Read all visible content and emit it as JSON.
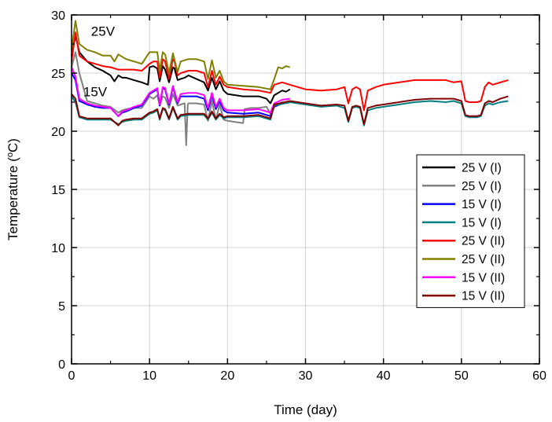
{
  "chart_data": {
    "type": "line",
    "xlabel": "Time (day)",
    "ylabel_main": "Temperature (",
    "ylabel_sup": "o",
    "ylabel_tail": "C)",
    "xlim": [
      0,
      60
    ],
    "ylim": [
      0,
      30
    ],
    "xticks": [
      0,
      10,
      20,
      30,
      40,
      50,
      60
    ],
    "yticks": [
      0,
      5,
      10,
      15,
      20,
      25,
      30
    ],
    "grid": true,
    "legend_position": "right",
    "annotations": [
      {
        "text": "25V",
        "x": 2.5,
        "y": 28.2
      },
      {
        "text": "15V",
        "x": 1.5,
        "y": 23.0
      }
    ],
    "series": [
      {
        "name": "25 V (I)",
        "color": "#000000",
        "x": [
          0,
          0.5,
          1,
          2,
          3,
          4,
          5,
          5.5,
          6,
          6.5,
          7,
          8,
          9,
          9.8,
          10,
          10.5,
          11,
          11.3,
          11.7,
          12,
          12.5,
          13,
          13.2,
          13.6,
          14,
          14.5,
          15,
          16,
          17,
          17.5,
          18,
          18.5,
          19,
          19.5,
          20,
          21,
          22,
          23,
          24,
          25,
          25.5,
          26,
          26.5,
          27,
          27.5,
          28
        ],
        "y": [
          26.5,
          28.2,
          26.8,
          26.0,
          25.5,
          25.2,
          24.8,
          24.3,
          24.8,
          24.6,
          24.6,
          24.4,
          24.2,
          24.0,
          25.5,
          25.6,
          25.4,
          24.3,
          25.6,
          25.3,
          24.2,
          25.5,
          25.4,
          24.4,
          24.5,
          24.6,
          24.8,
          24.5,
          24.2,
          23.5,
          24.6,
          23.6,
          24.3,
          23.5,
          23.2,
          23.1,
          23.0,
          23.0,
          23.0,
          22.8,
          22.4,
          23.1,
          23.3,
          23.5,
          23.4,
          23.6
        ]
      },
      {
        "name": "25 V (I)",
        "color": "#808080",
        "x": [
          0,
          0.5,
          1,
          2,
          3,
          4,
          5,
          6,
          6.5,
          7,
          8,
          9,
          10,
          10.5,
          11,
          11.3,
          11.7,
          12,
          12.5,
          13,
          13.6,
          14,
          14.5,
          14.7,
          14.9,
          15,
          15.5,
          16,
          17,
          17.5,
          18,
          18.5,
          19,
          19.5,
          20,
          21,
          22,
          22.2,
          23,
          24,
          25,
          25.5,
          26,
          26.5,
          27,
          27.5,
          28
        ],
        "y": [
          25.5,
          26.8,
          25.0,
          22.6,
          22.4,
          22.2,
          22.1,
          21.6,
          21.8,
          21.9,
          22.0,
          22.0,
          23.0,
          22.8,
          23.1,
          22.2,
          23.0,
          22.9,
          22.0,
          23.2,
          22.2,
          22.3,
          22.4,
          18.8,
          22.3,
          22.4,
          22.4,
          22.4,
          22.3,
          20.9,
          22.6,
          21.0,
          22.3,
          21.0,
          20.9,
          20.8,
          20.7,
          21.9,
          22.0,
          22.0,
          22.1,
          21.5,
          22.2,
          22.3,
          22.5,
          22.4,
          22.5
        ]
      },
      {
        "name": "15 V (I)",
        "color": "#0000ff",
        "x": [
          0,
          0.5,
          1,
          2,
          3,
          4,
          5,
          6,
          6.5,
          7,
          8,
          9,
          10,
          10.5,
          11,
          11.3,
          11.7,
          12,
          12.5,
          13,
          13.6,
          14,
          15,
          16,
          17,
          17.5,
          18,
          18.5,
          19,
          19.5,
          20,
          22,
          24,
          25.5,
          26,
          27,
          28
        ],
        "y": [
          25.0,
          24.4,
          22.6,
          22.3,
          22.1,
          22.0,
          22.0,
          21.3,
          21.6,
          21.7,
          22.0,
          22.2,
          23.2,
          23.4,
          23.6,
          22.2,
          23.7,
          23.6,
          22.3,
          23.8,
          22.4,
          23.0,
          23.0,
          23.0,
          22.8,
          21.8,
          23.1,
          21.9,
          22.6,
          21.8,
          21.6,
          21.5,
          21.6,
          21.3,
          22.1,
          22.4,
          22.5
        ]
      },
      {
        "name": "15 V (I)",
        "color": "#008080",
        "x": [
          0,
          0.5,
          1,
          2,
          3,
          4,
          5,
          6,
          6.5,
          7,
          8,
          9,
          10,
          10.5,
          11,
          11.3,
          11.7,
          12,
          12.5,
          13,
          13.6,
          14,
          15,
          17,
          17.5,
          18,
          18.5,
          19,
          19.5,
          20,
          22,
          24,
          25.5,
          26,
          28,
          30,
          32,
          34,
          35,
          35.5,
          36,
          36.5,
          37,
          37.5,
          38,
          39,
          40,
          42,
          44,
          46,
          48,
          49,
          50,
          50.5,
          51,
          52,
          52.5,
          53,
          53.5,
          54,
          55,
          56
        ],
        "y": [
          23.0,
          22.5,
          21.2,
          21.0,
          21.0,
          21.0,
          21.0,
          20.6,
          20.8,
          20.9,
          21.0,
          21.0,
          21.5,
          21.6,
          21.8,
          21.0,
          21.9,
          21.8,
          21.0,
          22.0,
          21.0,
          21.3,
          21.4,
          21.4,
          21.0,
          21.6,
          21.0,
          21.4,
          21.1,
          21.2,
          21.2,
          21.3,
          21.0,
          22.2,
          22.5,
          22.3,
          22.1,
          22.2,
          22.0,
          20.8,
          22.0,
          22.1,
          22.0,
          20.5,
          21.8,
          22.0,
          22.1,
          22.3,
          22.5,
          22.6,
          22.5,
          22.6,
          22.4,
          21.3,
          21.2,
          21.2,
          21.3,
          22.2,
          22.4,
          22.3,
          22.5,
          22.6
        ]
      },
      {
        "name": "25 V (II)",
        "color": "#ff0000",
        "x": [
          0,
          0.5,
          1,
          2,
          3,
          4,
          5,
          6,
          7,
          8,
          9,
          10,
          10.5,
          11,
          11.3,
          11.7,
          12,
          12.5,
          13,
          13.2,
          13.6,
          14,
          15,
          16,
          17,
          17.5,
          18,
          18.5,
          19,
          19.5,
          20,
          22,
          24,
          25.5,
          26,
          27,
          28,
          30,
          32,
          34,
          35,
          35.5,
          36,
          36.5,
          37,
          37.5,
          38,
          39,
          40,
          42,
          44,
          46,
          48,
          49,
          50,
          50.5,
          51,
          52,
          52.5,
          53,
          53.5,
          54,
          55,
          56
        ],
        "y": [
          26.0,
          28.5,
          26.5,
          26.0,
          25.8,
          25.6,
          25.5,
          25.3,
          25.3,
          25.3,
          25.2,
          25.8,
          26.0,
          26.0,
          24.6,
          26.2,
          26.0,
          24.5,
          26.2,
          26.0,
          24.8,
          25.0,
          25.2,
          25.2,
          25.0,
          23.8,
          25.2,
          24.0,
          24.7,
          24.0,
          23.8,
          23.6,
          23.5,
          23.3,
          24.0,
          24.2,
          24.0,
          23.6,
          23.5,
          23.6,
          23.8,
          22.4,
          23.6,
          23.8,
          23.6,
          21.8,
          23.5,
          23.8,
          24.0,
          24.2,
          24.4,
          24.4,
          24.4,
          24.2,
          24.3,
          22.6,
          22.5,
          22.5,
          22.6,
          23.8,
          24.2,
          24.0,
          24.2,
          24.4
        ]
      },
      {
        "name": "25 V (II)",
        "color": "#808000",
        "x": [
          0,
          0.5,
          1,
          2,
          3,
          4,
          5,
          5.5,
          6,
          7,
          8,
          9,
          10,
          10.5,
          11,
          11.3,
          11.7,
          12,
          12.5,
          13,
          13.6,
          14,
          15,
          16,
          17,
          17.5,
          18,
          18.5,
          19,
          19.5,
          20,
          22,
          24,
          25.5,
          26,
          26.5,
          27,
          27.5,
          28
        ],
        "y": [
          27.0,
          29.5,
          27.5,
          27.0,
          26.8,
          26.5,
          26.5,
          26.0,
          26.6,
          26.2,
          26.0,
          25.8,
          26.8,
          26.8,
          26.8,
          25.2,
          26.8,
          26.6,
          25.0,
          26.7,
          25.1,
          26.0,
          26.2,
          26.2,
          26.0,
          24.5,
          26.1,
          24.6,
          25.2,
          24.3,
          24.0,
          23.9,
          23.8,
          23.6,
          24.5,
          25.5,
          25.4,
          25.6,
          25.5
        ]
      },
      {
        "name": "15 V (II)",
        "color": "#ff00ff",
        "x": [
          0,
          0.5,
          1,
          2,
          3,
          4,
          5,
          6,
          6.5,
          7,
          8,
          9,
          10,
          10.5,
          11,
          11.3,
          11.7,
          12,
          12.5,
          13,
          13.6,
          14,
          15,
          16,
          17,
          17.5,
          18,
          18.5,
          19,
          19.5,
          20,
          22,
          24,
          25.5,
          26,
          27,
          28
        ],
        "y": [
          25.5,
          24.7,
          22.8,
          22.4,
          22.2,
          22.1,
          22.0,
          21.3,
          21.7,
          21.8,
          22.1,
          22.3,
          23.3,
          23.5,
          23.7,
          22.3,
          23.8,
          23.7,
          22.4,
          23.9,
          22.5,
          23.2,
          23.3,
          23.3,
          23.1,
          22.0,
          23.3,
          22.1,
          22.8,
          22.0,
          21.8,
          21.8,
          21.9,
          21.6,
          22.4,
          22.7,
          22.8
        ]
      },
      {
        "name": "15 V (II)",
        "color": "#800000",
        "x": [
          0,
          0.5,
          1,
          2,
          3,
          4,
          5,
          6,
          6.5,
          7,
          8,
          9,
          10,
          10.5,
          11,
          11.3,
          11.7,
          12,
          12.5,
          13,
          13.6,
          14,
          15,
          17,
          17.5,
          18,
          18.5,
          19,
          19.5,
          20,
          22,
          24,
          25.5,
          26,
          28,
          30,
          32,
          34,
          35,
          35.5,
          36,
          36.5,
          37,
          37.5,
          38,
          39,
          40,
          42,
          44,
          46,
          48,
          49,
          50,
          50.5,
          51,
          52,
          52.5,
          53,
          53.5,
          54,
          55,
          56
        ],
        "y": [
          23.2,
          22.8,
          21.3,
          21.1,
          21.1,
          21.1,
          21.1,
          20.5,
          20.9,
          21.0,
          21.1,
          21.1,
          21.6,
          21.7,
          21.9,
          21.1,
          22.0,
          21.9,
          21.1,
          22.1,
          21.1,
          21.4,
          21.5,
          21.5,
          21.1,
          21.7,
          21.1,
          21.5,
          21.2,
          21.3,
          21.3,
          21.4,
          21.1,
          22.3,
          22.6,
          22.4,
          22.2,
          22.3,
          22.2,
          20.9,
          22.1,
          22.2,
          22.1,
          20.6,
          22.0,
          22.2,
          22.3,
          22.5,
          22.7,
          22.8,
          22.8,
          22.8,
          22.6,
          21.4,
          21.3,
          21.3,
          21.4,
          22.4,
          22.6,
          22.5,
          22.8,
          23.0
        ]
      }
    ]
  }
}
